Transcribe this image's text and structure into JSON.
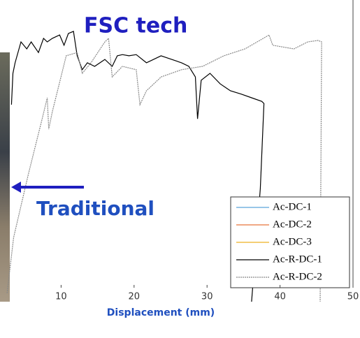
{
  "chart_data": {
    "type": "line",
    "annotations": [
      "FSC tech",
      "Traditional"
    ],
    "xlabel": "Displacement (mm)",
    "xlim": [
      0,
      50
    ],
    "xticks": [
      10,
      20,
      30,
      40,
      50
    ],
    "ylim": [
      0,
      100
    ],
    "series": [
      {
        "name": "Ac-DC-1",
        "color": "#5ba3d9",
        "x": [],
        "values": []
      },
      {
        "name": "Ac-DC-2",
        "color": "#e8743b",
        "x": [],
        "values": []
      },
      {
        "name": "Ac-DC-3",
        "color": "#edb120",
        "x": [],
        "values": []
      },
      {
        "name": "Ac-R-DC-1",
        "color": "#000000",
        "x": [
          3.2,
          3.4,
          3.7,
          4.5,
          5.3,
          5.9,
          6.9,
          7.6,
          8.1,
          8.8,
          9.8,
          10.4,
          11,
          11.7,
          12.2,
          12.9,
          13.6,
          14.6,
          16,
          17,
          17.7,
          18.4,
          19.3,
          20.3,
          21.7,
          23.7,
          26.5,
          27.5,
          28.4,
          28.7,
          29.2,
          30.4,
          31.8,
          33.2,
          34.7,
          36.1,
          37.5,
          37.8,
          37.3,
          36.1
        ],
        "values": [
          65.3,
          75.7,
          79.2,
          86.1,
          83.8,
          86.1,
          82.6,
          87.3,
          86.1,
          87.3,
          88.4,
          85,
          88.9,
          89.6,
          81.5,
          76.9,
          79.2,
          78,
          80.3,
          78,
          81.5,
          81.9,
          81.5,
          81.9,
          79.2,
          81.5,
          79.2,
          78,
          74.5,
          60.6,
          73.4,
          75.7,
          72.2,
          69.9,
          68.8,
          67.6,
          66.4,
          65.7,
          37.5,
          0
        ]
      },
      {
        "name": "Ac-R-DC-2",
        "color": "#888888",
        "x": [
          2.6,
          3.5,
          5.5,
          7.4,
          8.1,
          8.3,
          8.8,
          10.7,
          12.2,
          12.9,
          14.1,
          16,
          16.5,
          17,
          18.4,
          20.3,
          20.8,
          21.7,
          23.7,
          26.5,
          29.4,
          32.3,
          35.2,
          38.5,
          39,
          41.9,
          43.8,
          45.2,
          45.7,
          45.5
        ],
        "values": [
          2.8,
          21.3,
          42.1,
          60.6,
          67.6,
          57.2,
          63,
          81.5,
          82.6,
          75.7,
          79.2,
          86.1,
          87.3,
          74.5,
          78,
          76.9,
          65.3,
          69.9,
          74.5,
          76.9,
          78,
          81.5,
          83.8,
          88.4,
          85,
          83.8,
          86.1,
          86.6,
          86.1,
          0
        ]
      }
    ]
  }
}
